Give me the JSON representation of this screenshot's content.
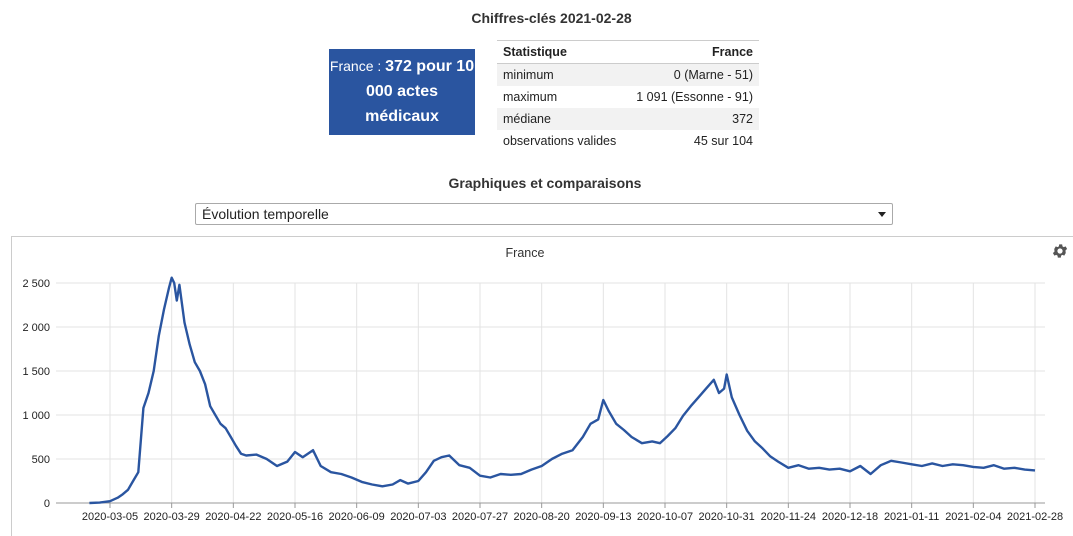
{
  "header": {
    "title": "Chiffres-clés 2021-02-28"
  },
  "kpi": {
    "prefix": "France : ",
    "value_text": "372 pour 10 000 actes médicaux"
  },
  "stats": {
    "col_label": "Statistique",
    "col_value": "France",
    "rows": [
      {
        "label": "minimum",
        "value": "0 (Marne - 51)"
      },
      {
        "label": "maximum",
        "value": "1 091 (Essonne - 91)"
      },
      {
        "label": "médiane",
        "value": "372"
      },
      {
        "label": "observations valides",
        "value": "45 sur 104"
      }
    ]
  },
  "section": {
    "title": "Graphiques et comparaisons"
  },
  "view_select": {
    "value": "Évolution temporelle"
  },
  "chart_panel": {
    "title": "France",
    "settings_icon": "gear-icon"
  },
  "chart_data": {
    "type": "line",
    "title": "France",
    "xlabel": "",
    "ylabel": "",
    "ylim": [
      0,
      2500
    ],
    "grid": true,
    "line_color": "#2a55a0",
    "y_ticks": [
      "0",
      "500",
      "1 000",
      "1 500",
      "2 000",
      "2 500"
    ],
    "y_tick_values": [
      0,
      500,
      1000,
      1500,
      2000,
      2500
    ],
    "x_ticks": [
      "2020-03-05",
      "2020-03-29",
      "2020-04-22",
      "2020-05-16",
      "2020-06-09",
      "2020-07-03",
      "2020-07-27",
      "2020-08-20",
      "2020-09-13",
      "2020-10-07",
      "2020-10-31",
      "2020-11-24",
      "2020-12-18",
      "2021-01-11",
      "2021-02-04",
      "2021-02-28"
    ],
    "series": [
      {
        "points": [
          [
            "2020-02-26",
            0
          ],
          [
            "2020-03-01",
            5
          ],
          [
            "2020-03-05",
            20
          ],
          [
            "2020-03-08",
            60
          ],
          [
            "2020-03-10",
            100
          ],
          [
            "2020-03-12",
            150
          ],
          [
            "2020-03-14",
            250
          ],
          [
            "2020-03-16",
            350
          ],
          [
            "2020-03-18",
            1080
          ],
          [
            "2020-03-20",
            1250
          ],
          [
            "2020-03-22",
            1500
          ],
          [
            "2020-03-24",
            1900
          ],
          [
            "2020-03-26",
            2200
          ],
          [
            "2020-03-28",
            2450
          ],
          [
            "2020-03-29",
            2560
          ],
          [
            "2020-03-30",
            2500
          ],
          [
            "2020-03-31",
            2300
          ],
          [
            "2020-04-01",
            2480
          ],
          [
            "2020-04-03",
            2050
          ],
          [
            "2020-04-05",
            1800
          ],
          [
            "2020-04-07",
            1600
          ],
          [
            "2020-04-09",
            1500
          ],
          [
            "2020-04-11",
            1350
          ],
          [
            "2020-04-13",
            1100
          ],
          [
            "2020-04-15",
            1000
          ],
          [
            "2020-04-17",
            900
          ],
          [
            "2020-04-19",
            850
          ],
          [
            "2020-04-21",
            750
          ],
          [
            "2020-04-23",
            650
          ],
          [
            "2020-04-25",
            560
          ],
          [
            "2020-04-27",
            540
          ],
          [
            "2020-05-01",
            550
          ],
          [
            "2020-05-05",
            500
          ],
          [
            "2020-05-09",
            420
          ],
          [
            "2020-05-13",
            470
          ],
          [
            "2020-05-16",
            580
          ],
          [
            "2020-05-19",
            520
          ],
          [
            "2020-05-23",
            600
          ],
          [
            "2020-05-26",
            420
          ],
          [
            "2020-05-30",
            350
          ],
          [
            "2020-06-03",
            330
          ],
          [
            "2020-06-07",
            290
          ],
          [
            "2020-06-11",
            240
          ],
          [
            "2020-06-15",
            210
          ],
          [
            "2020-06-19",
            190
          ],
          [
            "2020-06-23",
            210
          ],
          [
            "2020-06-26",
            260
          ],
          [
            "2020-06-29",
            220
          ],
          [
            "2020-07-03",
            250
          ],
          [
            "2020-07-06",
            350
          ],
          [
            "2020-07-09",
            480
          ],
          [
            "2020-07-12",
            520
          ],
          [
            "2020-07-15",
            540
          ],
          [
            "2020-07-19",
            430
          ],
          [
            "2020-07-23",
            400
          ],
          [
            "2020-07-27",
            310
          ],
          [
            "2020-07-31",
            290
          ],
          [
            "2020-08-04",
            330
          ],
          [
            "2020-08-08",
            320
          ],
          [
            "2020-08-12",
            330
          ],
          [
            "2020-08-16",
            380
          ],
          [
            "2020-08-20",
            420
          ],
          [
            "2020-08-24",
            500
          ],
          [
            "2020-08-28",
            560
          ],
          [
            "2020-09-01",
            600
          ],
          [
            "2020-09-05",
            750
          ],
          [
            "2020-09-08",
            900
          ],
          [
            "2020-09-11",
            950
          ],
          [
            "2020-09-13",
            1170
          ],
          [
            "2020-09-15",
            1050
          ],
          [
            "2020-09-18",
            900
          ],
          [
            "2020-09-21",
            830
          ],
          [
            "2020-09-24",
            750
          ],
          [
            "2020-09-28",
            680
          ],
          [
            "2020-10-02",
            700
          ],
          [
            "2020-10-05",
            680
          ],
          [
            "2020-10-08",
            760
          ],
          [
            "2020-10-11",
            850
          ],
          [
            "2020-10-14",
            990
          ],
          [
            "2020-10-17",
            1100
          ],
          [
            "2020-10-20",
            1200
          ],
          [
            "2020-10-23",
            1300
          ],
          [
            "2020-10-26",
            1400
          ],
          [
            "2020-10-28",
            1250
          ],
          [
            "2020-10-30",
            1300
          ],
          [
            "2020-10-31",
            1460
          ],
          [
            "2020-11-02",
            1200
          ],
          [
            "2020-11-05",
            1000
          ],
          [
            "2020-11-08",
            820
          ],
          [
            "2020-11-11",
            700
          ],
          [
            "2020-11-14",
            620
          ],
          [
            "2020-11-17",
            530
          ],
          [
            "2020-11-20",
            470
          ],
          [
            "2020-11-24",
            400
          ],
          [
            "2020-11-28",
            430
          ],
          [
            "2020-12-02",
            390
          ],
          [
            "2020-12-06",
            400
          ],
          [
            "2020-12-10",
            380
          ],
          [
            "2020-12-14",
            390
          ],
          [
            "2020-12-18",
            360
          ],
          [
            "2020-12-22",
            420
          ],
          [
            "2020-12-26",
            330
          ],
          [
            "2020-12-30",
            430
          ],
          [
            "2021-01-03",
            480
          ],
          [
            "2021-01-07",
            460
          ],
          [
            "2021-01-11",
            440
          ],
          [
            "2021-01-15",
            420
          ],
          [
            "2021-01-19",
            450
          ],
          [
            "2021-01-23",
            420
          ],
          [
            "2021-01-27",
            440
          ],
          [
            "2021-01-31",
            430
          ],
          [
            "2021-02-04",
            410
          ],
          [
            "2021-02-08",
            400
          ],
          [
            "2021-02-12",
            430
          ],
          [
            "2021-02-16",
            390
          ],
          [
            "2021-02-20",
            400
          ],
          [
            "2021-02-24",
            380
          ],
          [
            "2021-02-28",
            370
          ]
        ]
      }
    ]
  }
}
